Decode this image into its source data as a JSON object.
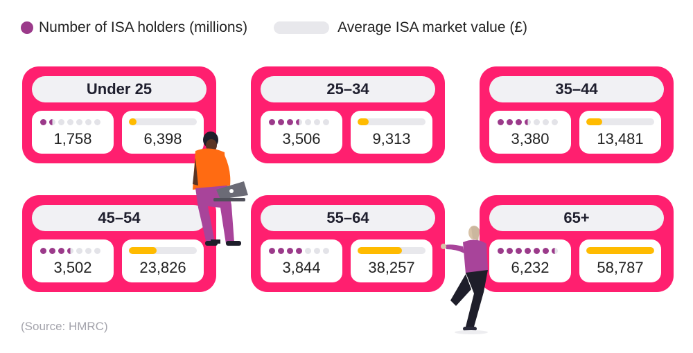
{
  "legend": {
    "holders_label": "Number of ISA holders (millions)",
    "value_label": "Average ISA market value (£)"
  },
  "colors": {
    "card": "#ff1f6f",
    "holders": "#9b3a8a",
    "value": "#ffbb00"
  },
  "source": "(Source: HMRC)",
  "chart_data": {
    "type": "table",
    "categories": [
      "Under 25",
      "25–34",
      "35–44",
      "45–54",
      "55–64",
      "65+"
    ],
    "series": [
      {
        "name": "Number of ISA holders (millions)",
        "values": [
          "1,758",
          "3,506",
          "3,380",
          "3,502",
          "3,844",
          "6,232"
        ]
      },
      {
        "name": "Average ISA market value (£)",
        "values": [
          "6,398",
          "9,313",
          "13,481",
          "23,826",
          "38,257",
          "58,787"
        ]
      }
    ],
    "holder_dot_levels": [
      1.5,
      3.5,
      3.5,
      3.5,
      4,
      6.5
    ],
    "value_bar_fractions": [
      0.11,
      0.16,
      0.23,
      0.41,
      0.65,
      1.0
    ],
    "dots_total": 7,
    "legend_position": "top-left"
  }
}
